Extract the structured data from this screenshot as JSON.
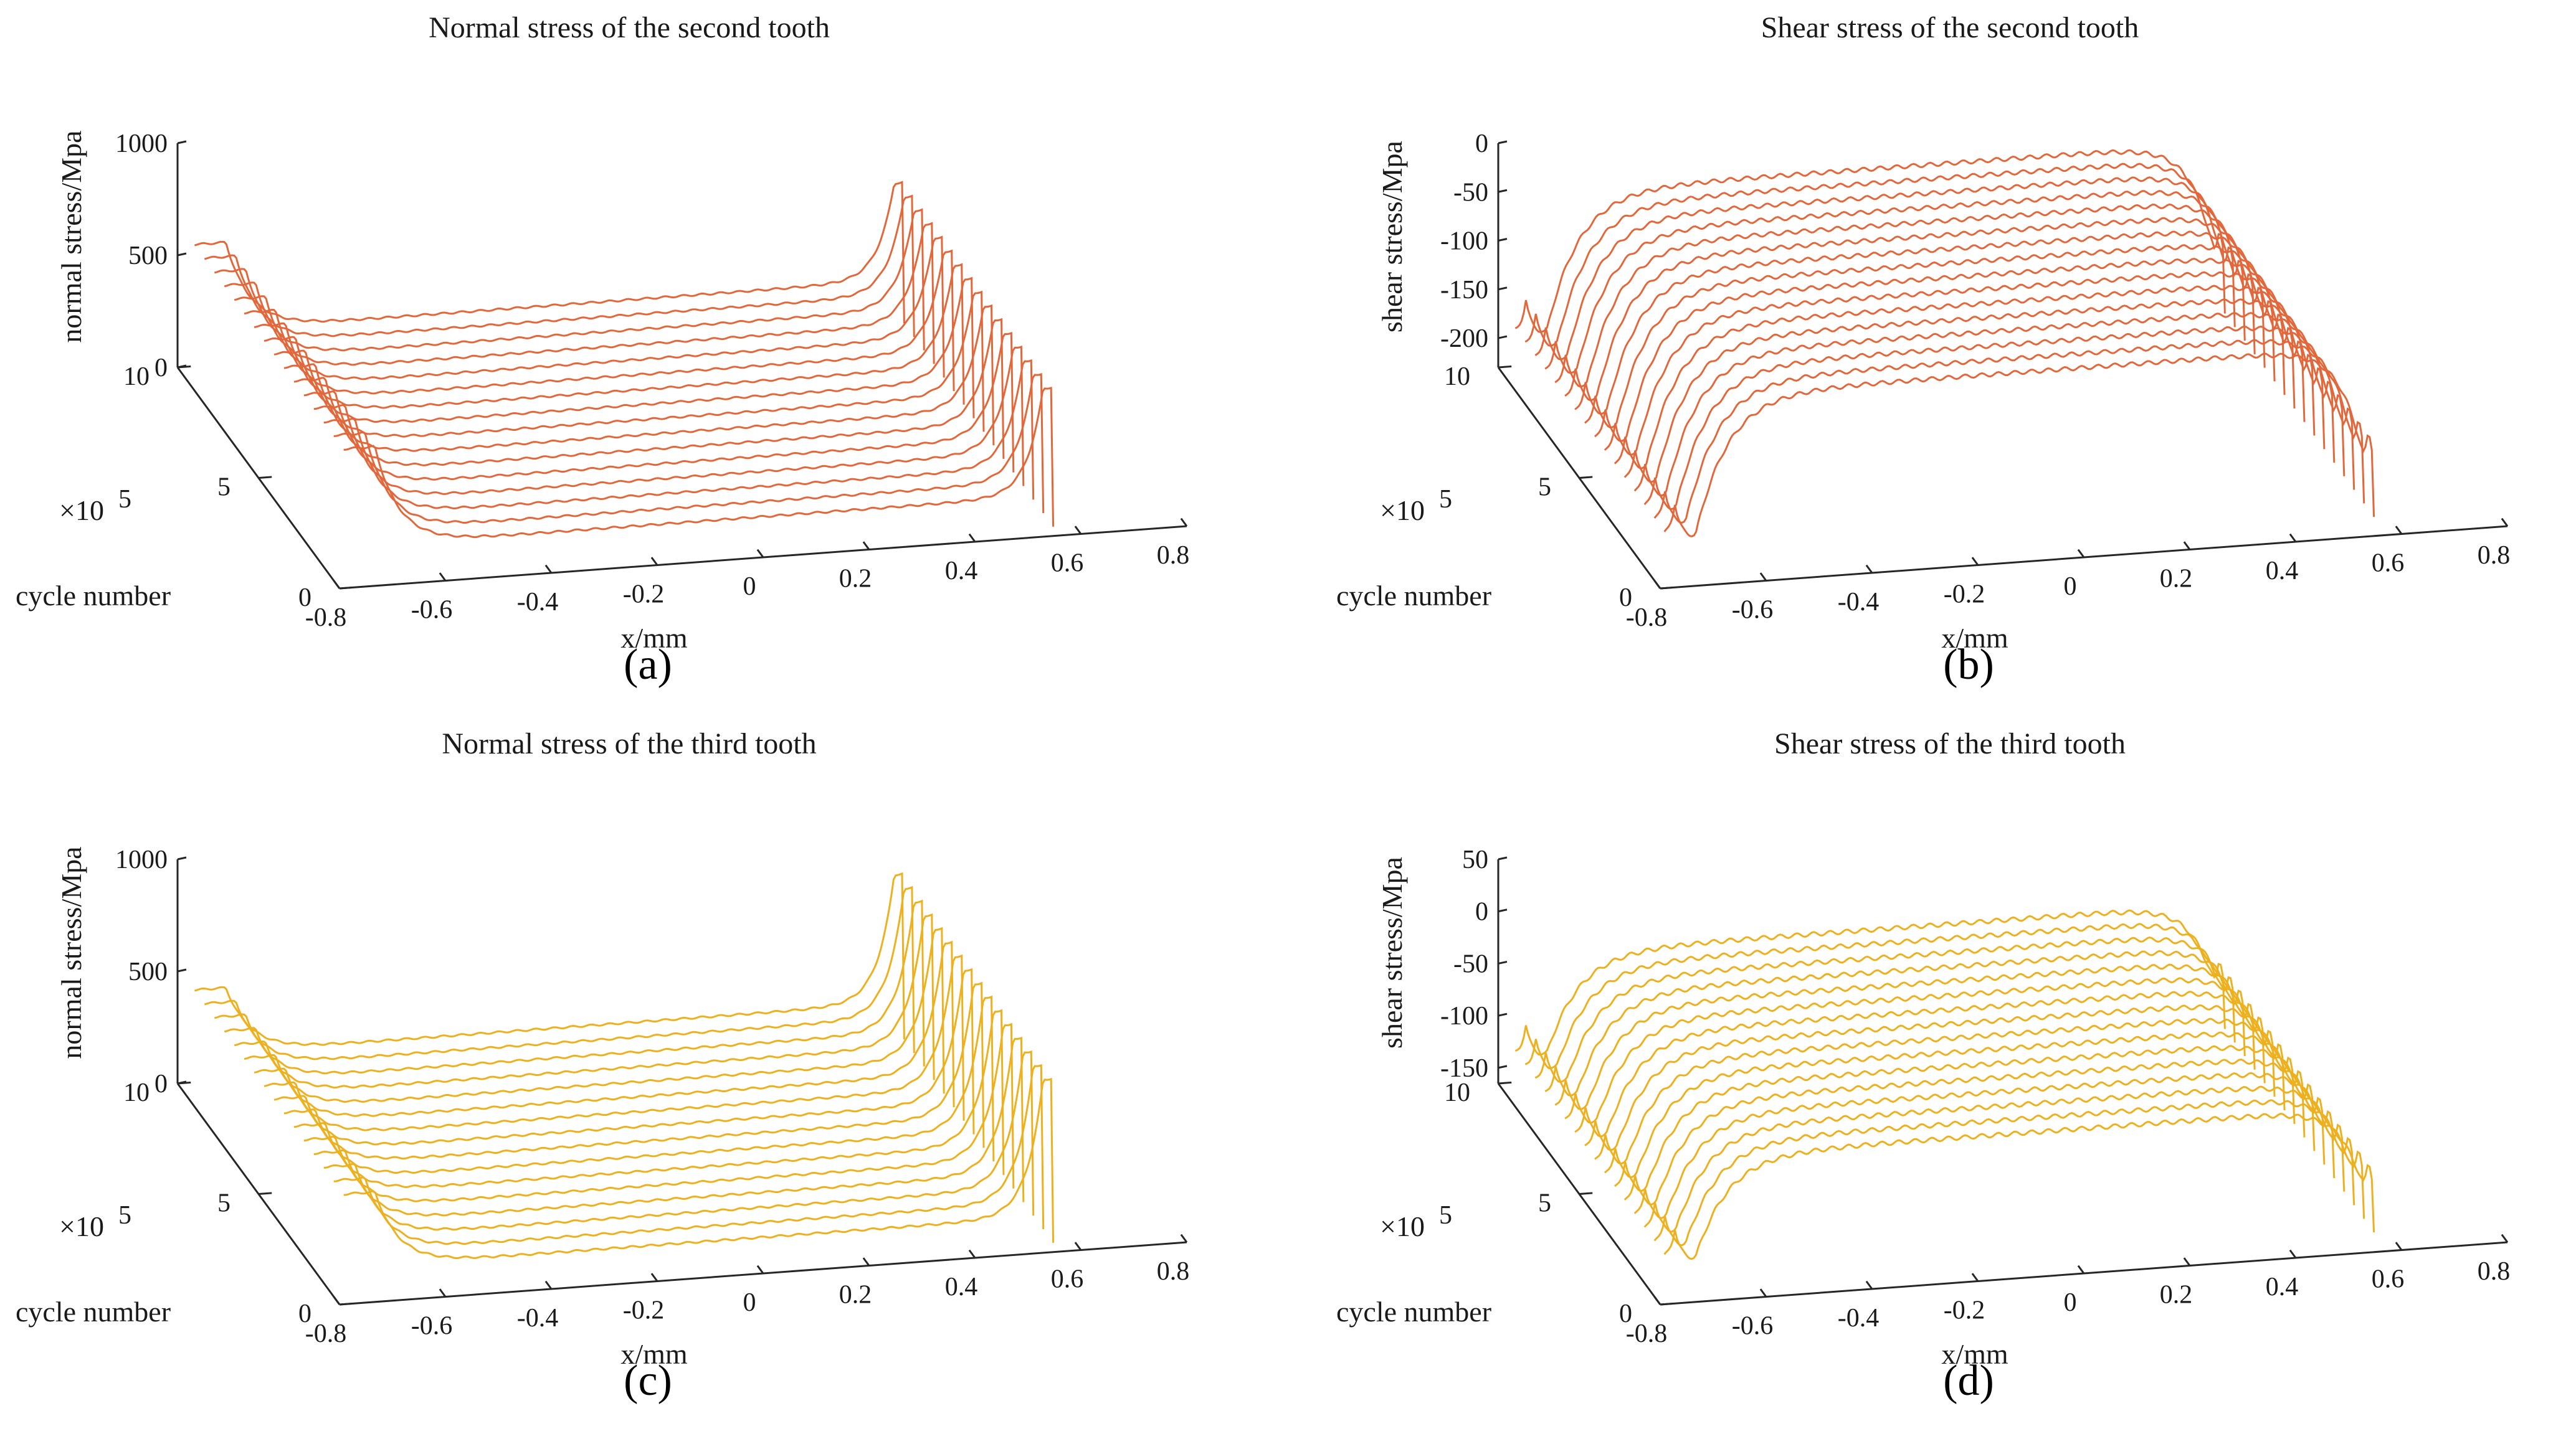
{
  "chart_data": [
    {
      "type": "line",
      "panel_label": "(a)",
      "title": "Normal stress of the second tooth",
      "xlabel": "x/mm",
      "ylabel": "cycle number",
      "zlabel": "normal stress/Mpa",
      "multiplier": "×10",
      "multiplier_exp": "5",
      "xticks": [
        "-0.8",
        "-0.6",
        "-0.4",
        "-0.2",
        "0",
        "0.2",
        "0.4",
        "0.6",
        "0.8"
      ],
      "yticks": [
        "0",
        "5",
        "10"
      ],
      "zticks": [
        "0",
        "500",
        "1000"
      ],
      "xlim": [
        -0.8,
        0.8
      ],
      "ylim": [
        0,
        10
      ],
      "zlim": [
        0,
        1000
      ],
      "series_count": 16,
      "series_color": "#E2683C",
      "profile": {
        "edge_left": -0.72,
        "edge_right": 0.54,
        "base_flat": 140,
        "peak_left": 620,
        "peak_right": 690,
        "growth": 55
      }
    },
    {
      "type": "line",
      "panel_label": "(b)",
      "title": "Shear stress of the second tooth",
      "xlabel": "x/mm",
      "ylabel": "cycle number",
      "zlabel": "shear stress/Mpa",
      "multiplier": "×10",
      "multiplier_exp": "5",
      "xticks": [
        "-0.8",
        "-0.6",
        "-0.4",
        "-0.2",
        "0",
        "0.2",
        "0.4",
        "0.6",
        "0.8"
      ],
      "yticks": [
        "0",
        "5",
        "10"
      ],
      "zticks": [
        "-200",
        "-150",
        "-100",
        "-50",
        "0"
      ],
      "xlim": [
        -0.8,
        0.8
      ],
      "ylim": [
        0,
        10
      ],
      "zlim": [
        -230,
        0
      ],
      "series_count": 16,
      "series_color": "#E2683C",
      "profile": {
        "edge_left": -0.72,
        "edge_right": 0.54,
        "base_flat": -45,
        "peak_left": -10,
        "peak_right": -5,
        "growth": 0
      }
    },
    {
      "type": "line",
      "panel_label": "(c)",
      "title": "Normal stress of the third tooth",
      "xlabel": "x/mm",
      "ylabel": "cycle number",
      "zlabel": "normal stress/Mpa",
      "multiplier": "×10",
      "multiplier_exp": "5",
      "xticks": [
        "-0.8",
        "-0.6",
        "-0.4",
        "-0.2",
        "0",
        "0.2",
        "0.4",
        "0.6",
        "0.8"
      ],
      "yticks": [
        "0",
        "5",
        "10"
      ],
      "zticks": [
        "0",
        "500",
        "1000"
      ],
      "xlim": [
        -0.8,
        0.8
      ],
      "ylim": [
        0,
        10
      ],
      "zlim": [
        0,
        1000
      ],
      "series_count": 16,
      "series_color": "#EDB120",
      "profile": {
        "edge_left": -0.72,
        "edge_right": 0.54,
        "base_flat": 120,
        "peak_left": 480,
        "peak_right": 820,
        "growth": 45
      }
    },
    {
      "type": "line",
      "panel_label": "(d)",
      "title": "Shear stress of the third tooth",
      "xlabel": "x/mm",
      "ylabel": "cycle number",
      "zlabel": "shear stress/Mpa",
      "multiplier": "×10",
      "multiplier_exp": "5",
      "xticks": [
        "-0.8",
        "-0.6",
        "-0.4",
        "-0.2",
        "0",
        "0.2",
        "0.4",
        "0.6",
        "0.8"
      ],
      "yticks": [
        "0",
        "5",
        "10"
      ],
      "zticks": [
        "-150",
        "-100",
        "-50",
        "0",
        "50"
      ],
      "xlim": [
        -0.8,
        0.8
      ],
      "ylim": [
        0,
        10
      ],
      "zlim": [
        -165,
        50
      ],
      "series_count": 16,
      "series_color": "#EDB120",
      "profile": {
        "edge_left": -0.72,
        "edge_right": 0.54,
        "base_flat": -35,
        "peak_left": -5,
        "peak_right": 0,
        "growth": 0
      }
    }
  ]
}
